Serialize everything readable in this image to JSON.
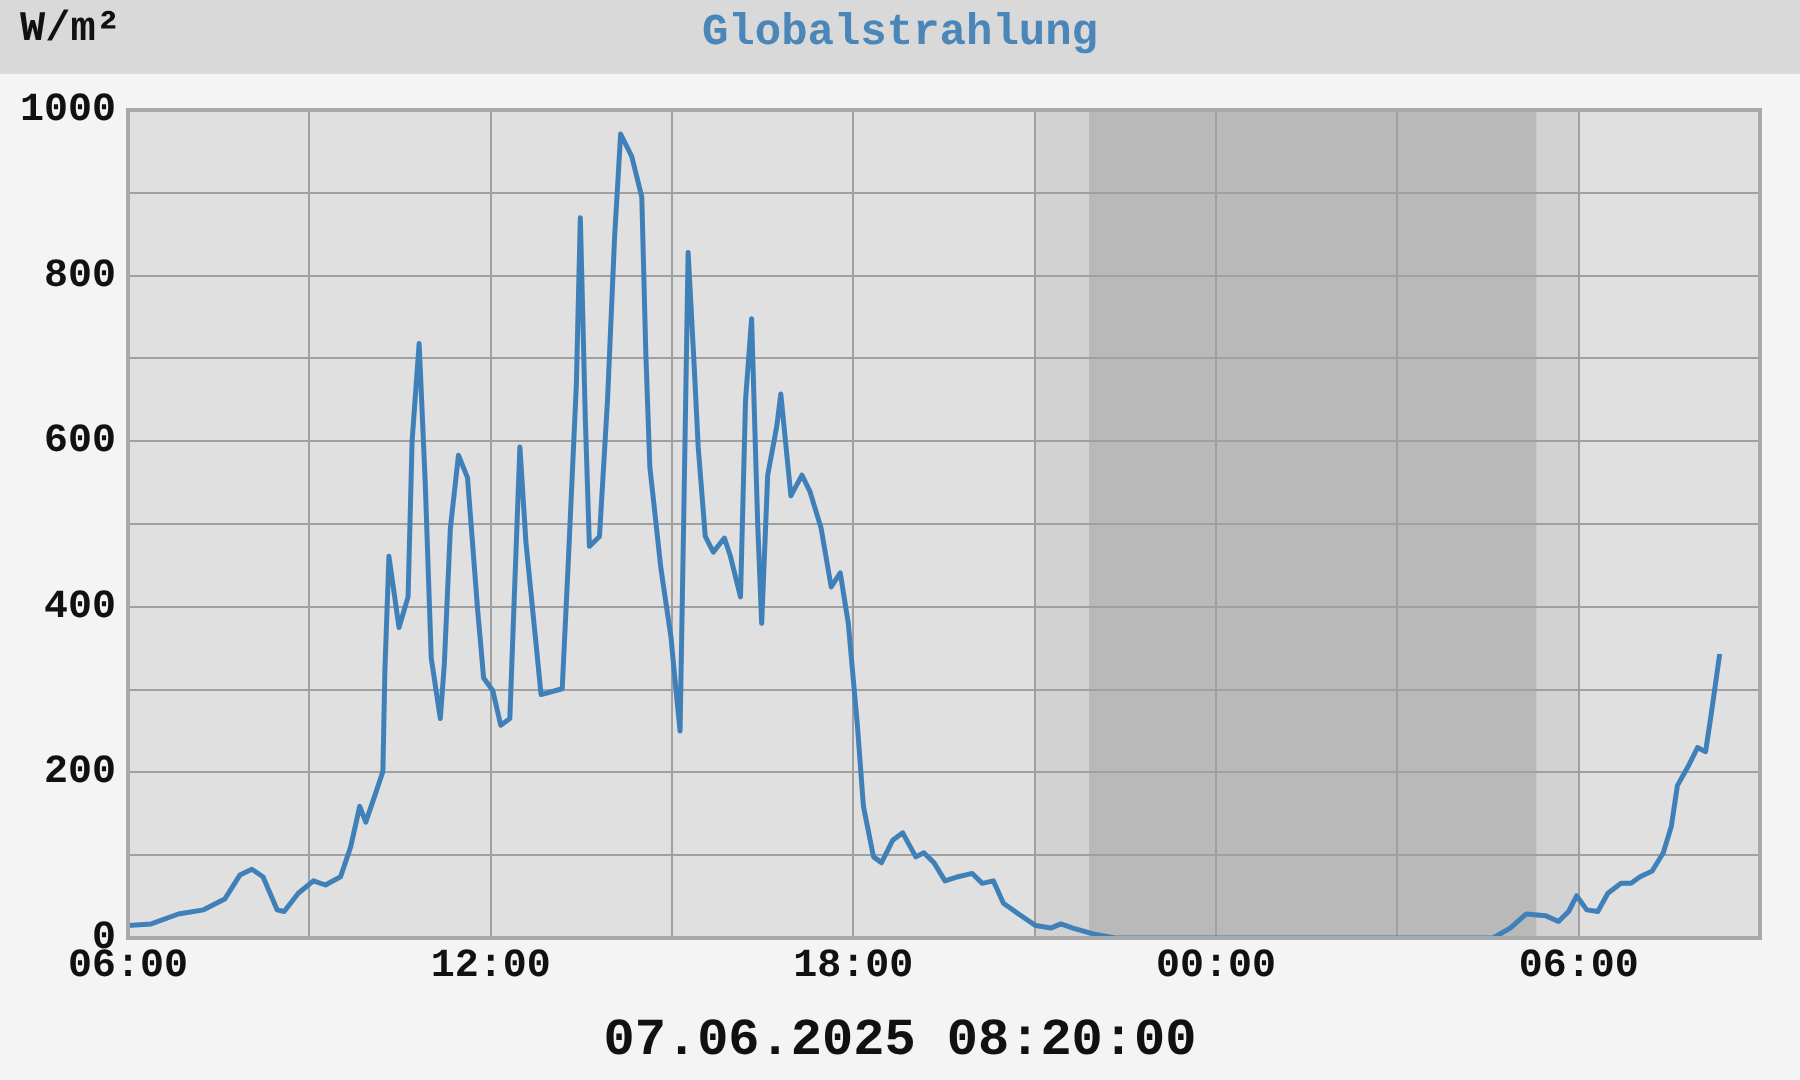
{
  "chart_data": {
    "type": "line",
    "title": "Globalstrahlung",
    "ylabel": "W/m²",
    "annotations": [
      "07.06.2025 08:20:00"
    ],
    "x": [
      "2025-06-06T06:00",
      "2025-06-06T06:23",
      "2025-06-06T06:50",
      "2025-06-06T07:15",
      "2025-06-06T07:36",
      "2025-06-06T07:51",
      "2025-06-06T08:03",
      "2025-06-06T08:14",
      "2025-06-06T08:28",
      "2025-06-06T08:35",
      "2025-06-06T08:49",
      "2025-06-06T09:04",
      "2025-06-06T09:16",
      "2025-06-06T09:31",
      "2025-06-06T09:41",
      "2025-06-06T09:50",
      "2025-06-06T09:56",
      "2025-06-06T10:05",
      "2025-06-06T10:13",
      "2025-06-06T10:15",
      "2025-06-06T10:19",
      "2025-06-06T10:29",
      "2025-06-06T10:38",
      "2025-06-06T10:42",
      "2025-06-06T10:49",
      "2025-06-06T10:55",
      "2025-06-06T11:01",
      "2025-06-06T11:10",
      "2025-06-06T11:14",
      "2025-06-06T11:20",
      "2025-06-06T11:28",
      "2025-06-06T11:37",
      "2025-06-06T11:47",
      "2025-06-06T11:53",
      "2025-06-06T12:02",
      "2025-06-06T12:10",
      "2025-06-06T12:19",
      "2025-06-06T12:23",
      "2025-06-06T12:29",
      "2025-06-06T12:35",
      "2025-06-06T12:50",
      "2025-06-06T13:11",
      "2025-06-06T13:17",
      "2025-06-06T13:25",
      "2025-06-06T13:29",
      "2025-06-06T13:34",
      "2025-06-06T13:38",
      "2025-06-06T13:48",
      "2025-06-06T13:56",
      "2025-06-06T14:03",
      "2025-06-06T14:09",
      "2025-06-06T14:20",
      "2025-06-06T14:30",
      "2025-06-06T14:34",
      "2025-06-06T14:38",
      "2025-06-06T14:49",
      "2025-06-06T14:59",
      "2025-06-06T15:04",
      "2025-06-06T15:08",
      "2025-06-06T15:12",
      "2025-06-06T15:16",
      "2025-06-06T15:22",
      "2025-06-06T15:26",
      "2025-06-06T15:33",
      "2025-06-06T15:41",
      "2025-06-06T15:52",
      "2025-06-06T15:58",
      "2025-06-06T16:08",
      "2025-06-06T16:13",
      "2025-06-06T16:19",
      "2025-06-06T16:25",
      "2025-06-06T16:29",
      "2025-06-06T16:35",
      "2025-06-06T16:44",
      "2025-06-06T16:48",
      "2025-06-06T16:58",
      "2025-06-06T17:09",
      "2025-06-06T17:17",
      "2025-06-06T17:28",
      "2025-06-06T17:38",
      "2025-06-06T17:47",
      "2025-06-06T17:55",
      "2025-06-06T18:04",
      "2025-06-06T18:10",
      "2025-06-06T18:20",
      "2025-06-06T18:28",
      "2025-06-06T18:39",
      "2025-06-06T18:49",
      "2025-06-06T19:02",
      "2025-06-06T19:10",
      "2025-06-06T19:20",
      "2025-06-06T19:31",
      "2025-06-06T19:44",
      "2025-06-06T19:58",
      "2025-06-06T20:08",
      "2025-06-06T20:19",
      "2025-06-06T20:29",
      "2025-06-06T20:44",
      "2025-06-06T21:01",
      "2025-06-06T21:16",
      "2025-06-06T21:26",
      "2025-06-06T21:38",
      "2025-06-06T21:58",
      "2025-06-06T22:20",
      "2025-06-07T04:35",
      "2025-06-07T04:52",
      "2025-06-07T05:08",
      "2025-06-07T05:27",
      "2025-06-07T05:40",
      "2025-06-07T05:50",
      "2025-06-07T05:58",
      "2025-06-07T06:08",
      "2025-06-07T06:19",
      "2025-06-07T06:29",
      "2025-06-07T06:42",
      "2025-06-07T06:52",
      "2025-06-07T07:01",
      "2025-06-07T07:13",
      "2025-06-07T07:24",
      "2025-06-07T07:32",
      "2025-06-07T07:38",
      "2025-06-07T07:49",
      "2025-06-07T07:58",
      "2025-06-07T08:06",
      "2025-06-07T08:12",
      "2025-06-07T08:20"
    ],
    "series": [
      {
        "color": "#3f80b8",
        "values": [
          15,
          17,
          29,
          34,
          47,
          76,
          83,
          74,
          34,
          32,
          54,
          69,
          64,
          74,
          110,
          159,
          140,
          172,
          201,
          324,
          461,
          375,
          412,
          600,
          718,
          551,
          338,
          265,
          331,
          495,
          583,
          556,
          397,
          314,
          299,
          257,
          265,
          397,
          593,
          478,
          294,
          301,
          453,
          667,
          870,
          625,
          473,
          485,
          650,
          846,
          971,
          944,
          895,
          706,
          569,
          446,
          363,
          299,
          250,
          534,
          828,
          691,
          593,
          485,
          466,
          483,
          461,
          412,
          650,
          748,
          502,
          380,
          559,
          618,
          657,
          534,
          559,
          539,
          495,
          424,
          441,
          380,
          257,
          159,
          98,
          91,
          118,
          127,
          98,
          103,
          91,
          69,
          74,
          78,
          66,
          69,
          42,
          29,
          15,
          12,
          17,
          12,
          5,
          0,
          0,
          12,
          29,
          27,
          20,
          32,
          51,
          34,
          32,
          54,
          66,
          66,
          74,
          81,
          103,
          135,
          184,
          208,
          230,
          225,
          274,
          343
        ]
      }
    ],
    "xlim": [
      "2025-06-06T06:00",
      "2025-06-07T09:00"
    ],
    "xticks": [
      {
        "value": "2025-06-06T06:00",
        "label": "06:00"
      },
      {
        "value": "2025-06-06T09:00",
        "label": null
      },
      {
        "value": "2025-06-06T12:00",
        "label": "12:00"
      },
      {
        "value": "2025-06-06T15:00",
        "label": null
      },
      {
        "value": "2025-06-06T18:00",
        "label": "18:00"
      },
      {
        "value": "2025-06-06T21:00",
        "label": null
      },
      {
        "value": "2025-06-07T00:00",
        "label": "00:00"
      },
      {
        "value": "2025-06-07T03:00",
        "label": null
      },
      {
        "value": "2025-06-07T06:00",
        "label": "06:00"
      },
      {
        "value": "2025-06-07T09:00",
        "label": null
      }
    ],
    "ylim": [
      0,
      1000
    ],
    "yticks": [
      0,
      {
        "value": 100,
        "label": null
      },
      200,
      {
        "value": 300,
        "label": null
      },
      400,
      {
        "value": 500,
        "label": null
      },
      600,
      {
        "value": 700,
        "label": null
      },
      800,
      {
        "value": 900,
        "label": null
      },
      1000
    ],
    "bands": [
      {
        "axis": "x",
        "from": "2025-06-06T21:00",
        "to": "2025-06-07T06:00",
        "color": "#d2d2d2"
      },
      {
        "axis": "x",
        "from": "2025-06-06T21:54",
        "to": "2025-06-07T05:18",
        "color": "#b9b9b9"
      }
    ],
    "grid": true,
    "legend": false,
    "marker": "none",
    "line_style": "solid"
  }
}
